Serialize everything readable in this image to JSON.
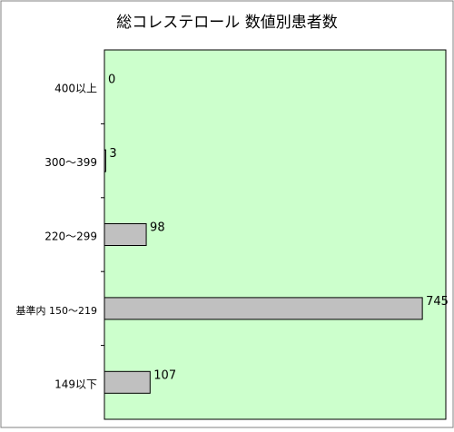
{
  "chart_data": {
    "type": "bar",
    "orientation": "horizontal",
    "title": "総コレステロール 数値別患者数",
    "categories": [
      "400以上",
      "300～399",
      "220～299",
      "基準内 150～219",
      "149以下"
    ],
    "values": [
      0,
      3,
      98,
      745,
      107
    ],
    "xlim": [
      0,
      800
    ],
    "grid": false,
    "legend": "none",
    "colors": {
      "plot_background": "#ccffcc",
      "bar_fill": "#c0c0c0",
      "bar_stroke": "#000000",
      "axis": "#000000",
      "border": "#808080"
    }
  }
}
